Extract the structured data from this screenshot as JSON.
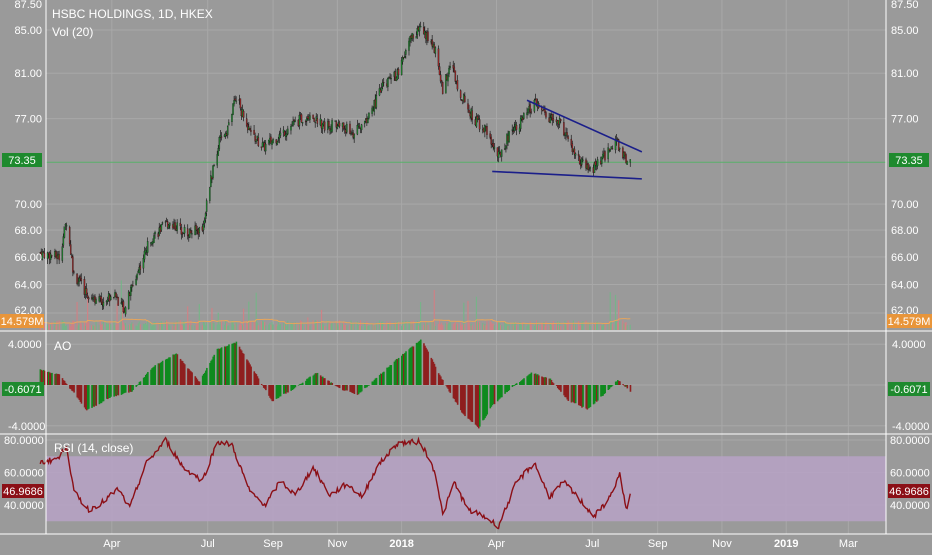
{
  "colors": {
    "background": "#9a9a9a",
    "grid": "#a8a8a8",
    "candle_up": "#1e8a2e",
    "candle_down": "#9c2727",
    "trendline": "#1b1f8a",
    "rsi_line": "#8b0f16",
    "rsi_band": "#b7a2c6",
    "price_line": "#59b06a",
    "vol_up": "#74b687",
    "vol_down": "#d37f84",
    "vol_ma": "#e8a55b"
  },
  "chart_data": [
    {
      "type": "candlestick",
      "title": "HSBC HOLDINGS, 1D, HKEX",
      "overlay_label": "Vol (20)",
      "x_ticks": [
        "Apr",
        "Jul",
        "Sep",
        "Nov",
        "2018",
        "Apr",
        "Jul",
        "Sep",
        "Nov",
        "2019",
        "Mar"
      ],
      "y_ticks": [
        "87.50",
        "85.00",
        "81.00",
        "77.00",
        "73.35",
        "70.00",
        "68.00",
        "66.00",
        "64.00",
        "62.00"
      ],
      "y_scale": "log",
      "last_price": "73.35",
      "volume_label": "14.579M",
      "anchors": [
        {
          "date": "2017-01-23",
          "price": 66.3
        },
        {
          "date": "2017-02-10",
          "price": 66.0
        },
        {
          "date": "2017-02-17",
          "price": 68.7
        },
        {
          "date": "2017-02-24",
          "price": 64.7
        },
        {
          "date": "2017-03-08",
          "price": 63.4
        },
        {
          "date": "2017-03-22",
          "price": 62.8
        },
        {
          "date": "2017-04-03",
          "price": 63.3
        },
        {
          "date": "2017-04-13",
          "price": 62.3
        },
        {
          "date": "2017-04-24",
          "price": 64.6
        },
        {
          "date": "2017-05-08",
          "price": 67.4
        },
        {
          "date": "2017-05-25",
          "price": 68.6
        },
        {
          "date": "2017-06-13",
          "price": 67.8
        },
        {
          "date": "2017-06-26",
          "price": 68.1
        },
        {
          "date": "2017-07-03",
          "price": 71.5
        },
        {
          "date": "2017-07-12",
          "price": 75.0
        },
        {
          "date": "2017-07-20",
          "price": 76.2
        },
        {
          "date": "2017-07-28",
          "price": 79.0
        },
        {
          "date": "2017-08-08",
          "price": 76.0
        },
        {
          "date": "2017-08-23",
          "price": 74.6
        },
        {
          "date": "2017-09-06",
          "price": 75.5
        },
        {
          "date": "2017-09-20",
          "price": 76.5
        },
        {
          "date": "2017-10-05",
          "price": 77.4
        },
        {
          "date": "2017-10-20",
          "price": 76.4
        },
        {
          "date": "2017-11-03",
          "price": 76.5
        },
        {
          "date": "2017-11-17",
          "price": 75.7
        },
        {
          "date": "2017-12-01",
          "price": 77.2
        },
        {
          "date": "2017-12-15",
          "price": 80.0
        },
        {
          "date": "2017-12-29",
          "price": 81.0
        },
        {
          "date": "2018-01-10",
          "price": 84.3
        },
        {
          "date": "2018-01-19",
          "price": 85.2
        },
        {
          "date": "2018-02-02",
          "price": 83.2
        },
        {
          "date": "2018-02-09",
          "price": 79.4
        },
        {
          "date": "2018-02-16",
          "price": 82.0
        },
        {
          "date": "2018-02-26",
          "price": 79.2
        },
        {
          "date": "2018-03-09",
          "price": 77.2
        },
        {
          "date": "2018-03-22",
          "price": 76.0
        },
        {
          "date": "2018-04-03",
          "price": 73.8
        },
        {
          "date": "2018-04-16",
          "price": 76.2
        },
        {
          "date": "2018-04-25",
          "price": 76.8
        },
        {
          "date": "2018-05-08",
          "price": 78.3
        },
        {
          "date": "2018-05-21",
          "price": 77.0
        },
        {
          "date": "2018-06-01",
          "price": 76.6
        },
        {
          "date": "2018-06-15",
          "price": 73.8
        },
        {
          "date": "2018-06-28",
          "price": 72.6
        },
        {
          "date": "2018-07-10",
          "price": 73.5
        },
        {
          "date": "2018-07-23",
          "price": 75.2
        },
        {
          "date": "2018-07-30",
          "price": 73.9
        },
        {
          "date": "2018-08-06",
          "price": 73.35
        }
      ],
      "trendlines": [
        {
          "name": "upper",
          "from": {
            "date": "2018-04-30",
            "price": 78.6
          },
          "to": {
            "date": "2018-08-17",
            "price": 74.2
          }
        },
        {
          "name": "lower",
          "from": {
            "date": "2018-03-28",
            "price": 72.6
          },
          "to": {
            "date": "2018-08-17",
            "price": 72.0
          }
        }
      ]
    },
    {
      "type": "bar",
      "title": "AO",
      "y_ticks": [
        "4.0000",
        "-4.0000"
      ],
      "last_value": "-0.6071",
      "anchors": [
        {
          "date": "2017-01-23",
          "value": 1.5
        },
        {
          "date": "2017-02-10",
          "value": 1.0
        },
        {
          "date": "2017-02-24",
          "value": -0.8
        },
        {
          "date": "2017-03-08",
          "value": -2.5
        },
        {
          "date": "2017-03-31",
          "value": -1.2
        },
        {
          "date": "2017-04-20",
          "value": -0.6
        },
        {
          "date": "2017-05-10",
          "value": 1.8
        },
        {
          "date": "2017-06-01",
          "value": 3.1
        },
        {
          "date": "2017-06-23",
          "value": 0.3
        },
        {
          "date": "2017-07-10",
          "value": 3.5
        },
        {
          "date": "2017-07-28",
          "value": 4.2
        },
        {
          "date": "2017-08-16",
          "value": 1.0
        },
        {
          "date": "2017-08-31",
          "value": -1.6
        },
        {
          "date": "2017-09-20",
          "value": -0.4
        },
        {
          "date": "2017-10-12",
          "value": 1.2
        },
        {
          "date": "2017-11-02",
          "value": -0.3
        },
        {
          "date": "2017-11-20",
          "value": -1.0
        },
        {
          "date": "2017-12-05",
          "value": 0.4
        },
        {
          "date": "2017-12-28",
          "value": 2.6
        },
        {
          "date": "2018-01-20",
          "value": 4.5
        },
        {
          "date": "2018-02-08",
          "value": 0.6
        },
        {
          "date": "2018-02-28",
          "value": -2.8
        },
        {
          "date": "2018-03-15",
          "value": -4.2
        },
        {
          "date": "2018-03-28",
          "value": -2.0
        },
        {
          "date": "2018-04-16",
          "value": -0.2
        },
        {
          "date": "2018-05-04",
          "value": 1.2
        },
        {
          "date": "2018-05-22",
          "value": 0.6
        },
        {
          "date": "2018-06-08",
          "value": -1.5
        },
        {
          "date": "2018-06-26",
          "value": -2.4
        },
        {
          "date": "2018-07-10",
          "value": -1.1
        },
        {
          "date": "2018-07-25",
          "value": 0.5
        },
        {
          "date": "2018-08-06",
          "value": -0.61
        }
      ]
    },
    {
      "type": "line",
      "title": "RSI (14, close)",
      "y_ticks": [
        "80.0000",
        "60.0000",
        "40.0000"
      ],
      "band": [
        30,
        70
      ],
      "last_value": "46.9686",
      "anchors": [
        {
          "date": "2017-01-23",
          "value": 66
        },
        {
          "date": "2017-02-10",
          "value": 69
        },
        {
          "date": "2017-02-17",
          "value": 77
        },
        {
          "date": "2017-02-24",
          "value": 48
        },
        {
          "date": "2017-03-10",
          "value": 37
        },
        {
          "date": "2017-03-24",
          "value": 42
        },
        {
          "date": "2017-04-07",
          "value": 50
        },
        {
          "date": "2017-04-18",
          "value": 38
        },
        {
          "date": "2017-05-03",
          "value": 65
        },
        {
          "date": "2017-05-22",
          "value": 80
        },
        {
          "date": "2017-06-08",
          "value": 63
        },
        {
          "date": "2017-06-26",
          "value": 55
        },
        {
          "date": "2017-07-10",
          "value": 79
        },
        {
          "date": "2017-07-24",
          "value": 77
        },
        {
          "date": "2017-08-10",
          "value": 48
        },
        {
          "date": "2017-08-25",
          "value": 40
        },
        {
          "date": "2017-09-08",
          "value": 55
        },
        {
          "date": "2017-09-22",
          "value": 46
        },
        {
          "date": "2017-10-09",
          "value": 63
        },
        {
          "date": "2017-10-25",
          "value": 46
        },
        {
          "date": "2017-11-10",
          "value": 53
        },
        {
          "date": "2017-11-25",
          "value": 45
        },
        {
          "date": "2017-12-08",
          "value": 63
        },
        {
          "date": "2017-12-28",
          "value": 78
        },
        {
          "date": "2018-01-19",
          "value": 79
        },
        {
          "date": "2018-02-02",
          "value": 60
        },
        {
          "date": "2018-02-09",
          "value": 34
        },
        {
          "date": "2018-02-20",
          "value": 54
        },
        {
          "date": "2018-03-05",
          "value": 37
        },
        {
          "date": "2018-03-20",
          "value": 33
        },
        {
          "date": "2018-04-03",
          "value": 27
        },
        {
          "date": "2018-04-20",
          "value": 54
        },
        {
          "date": "2018-05-07",
          "value": 66
        },
        {
          "date": "2018-05-21",
          "value": 45
        },
        {
          "date": "2018-06-04",
          "value": 54
        },
        {
          "date": "2018-06-18",
          "value": 44
        },
        {
          "date": "2018-07-03",
          "value": 33
        },
        {
          "date": "2018-07-17",
          "value": 44
        },
        {
          "date": "2018-07-27",
          "value": 59
        },
        {
          "date": "2018-08-02",
          "value": 37
        },
        {
          "date": "2018-08-06",
          "value": 46.97
        }
      ]
    }
  ]
}
